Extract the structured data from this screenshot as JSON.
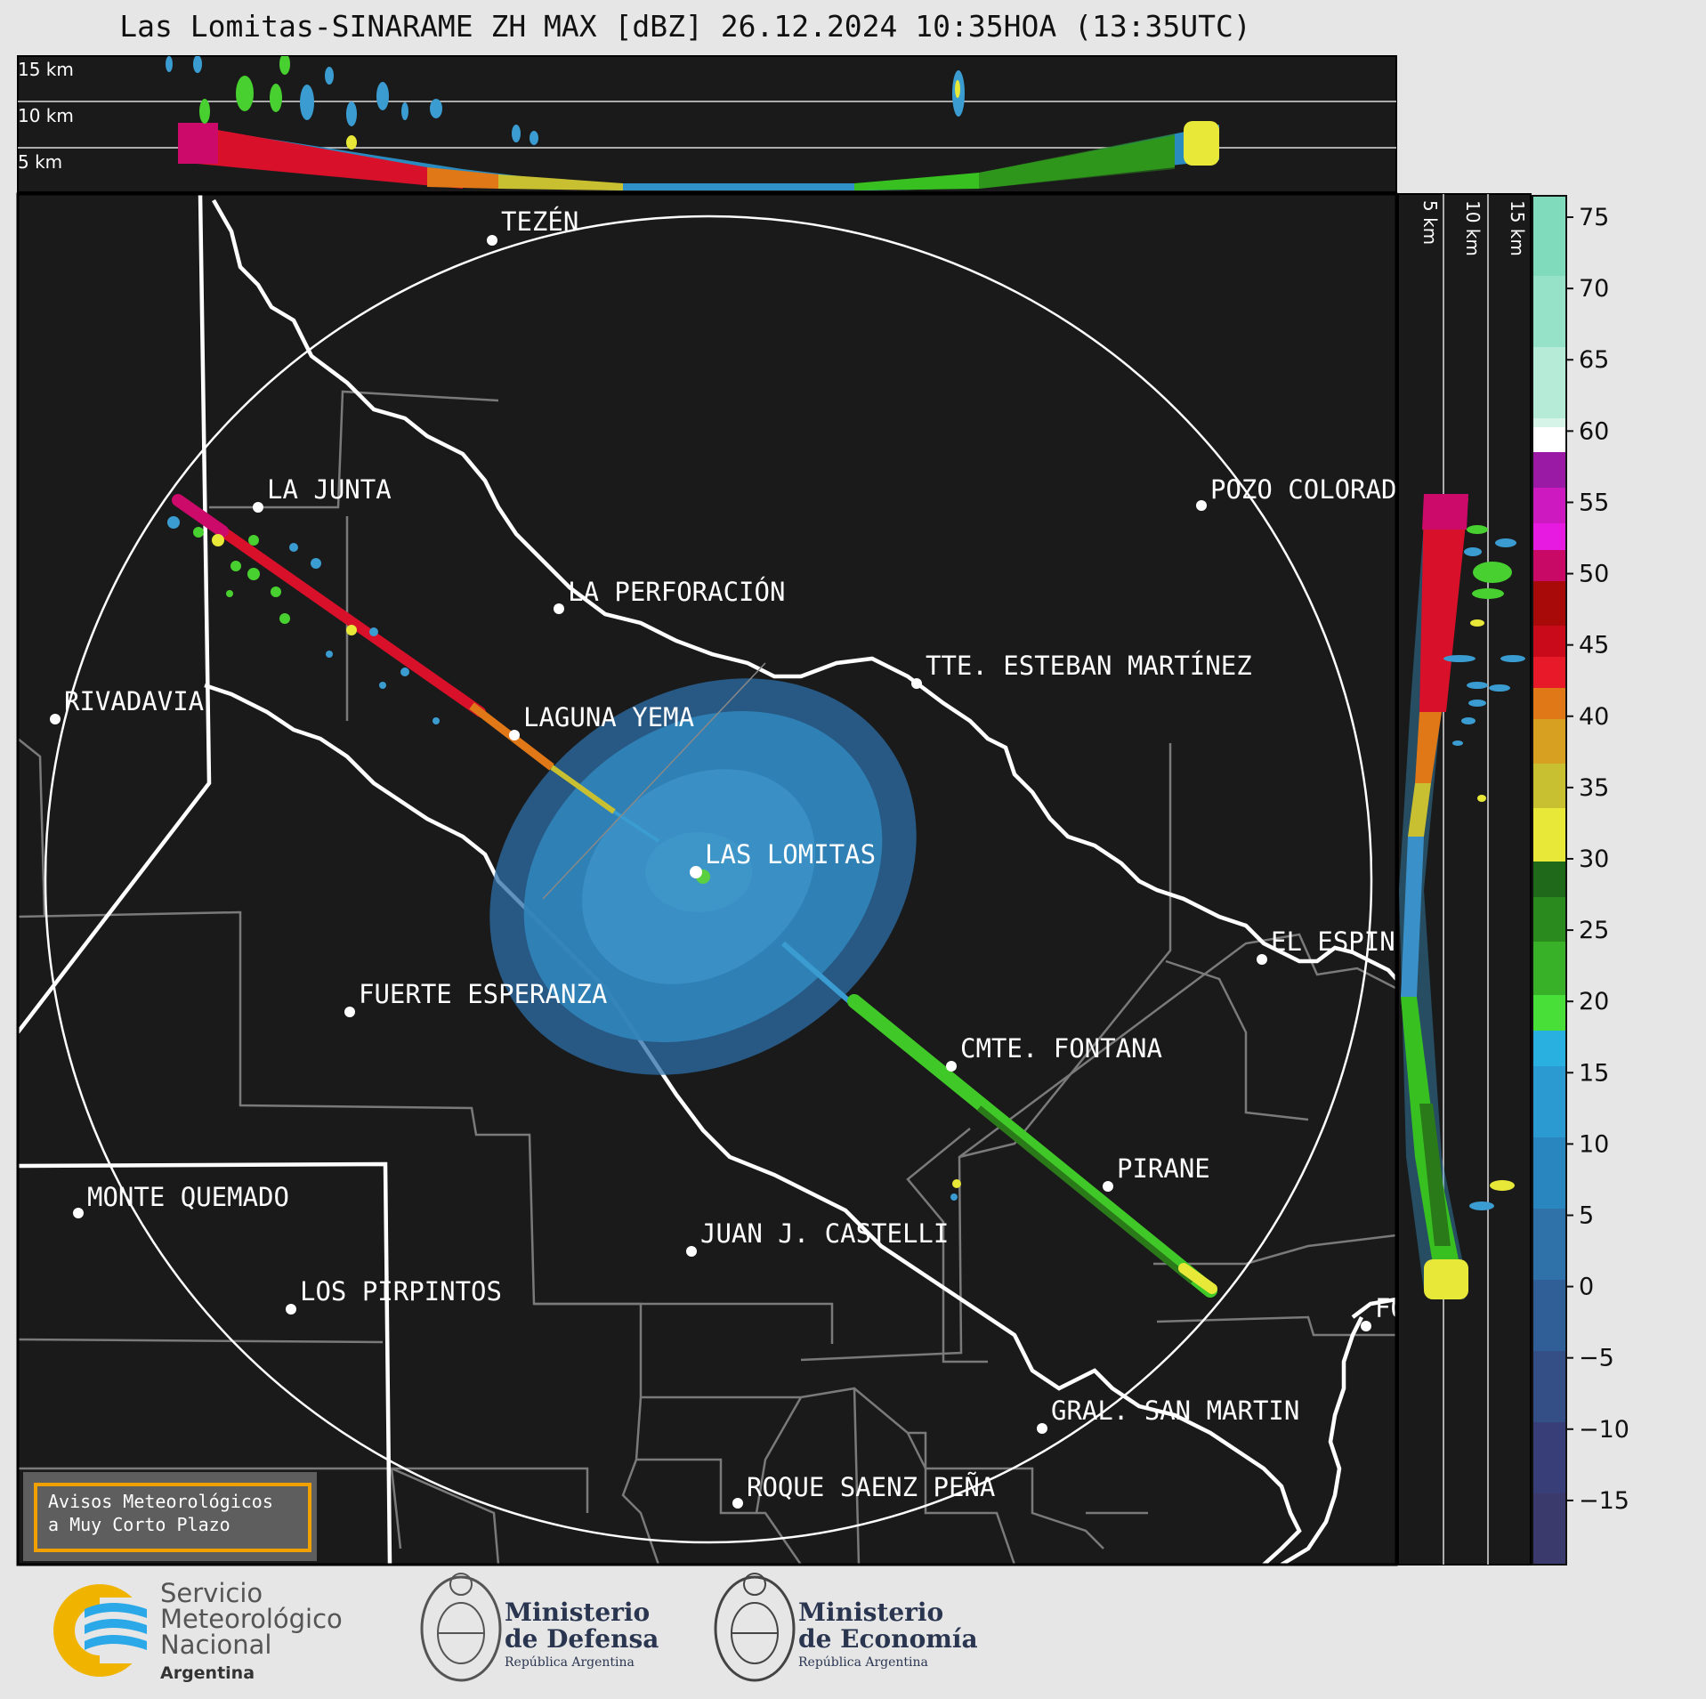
{
  "title": "Las Lomitas-SINARAME ZH MAX [dBZ] 26.12.2024 10:35HOA (13:35UTC)",
  "top_profile": {
    "height_labels": [
      "15 km",
      "10 km",
      "5 km"
    ]
  },
  "side_profile": {
    "height_labels": [
      "5 km",
      "10 km",
      "15 km"
    ]
  },
  "map": {
    "places": [
      {
        "name": "TEZÉN"
      },
      {
        "name": "LA JUNTA"
      },
      {
        "name": "POZO COLORADO"
      },
      {
        "name": "LA PERFORACIÓN"
      },
      {
        "name": "TTE. ESTEBAN MARTÍNEZ"
      },
      {
        "name": "RIVADAVIA"
      },
      {
        "name": "LAGUNA YEMA"
      },
      {
        "name": "LAS LOMITAS"
      },
      {
        "name": "EL ESPINILLO"
      },
      {
        "name": "FUERTE ESPERANZA"
      },
      {
        "name": "CMTE. FONTANA"
      },
      {
        "name": "PIRANE"
      },
      {
        "name": "MONTE QUEMADO"
      },
      {
        "name": "JUAN J. CASTELLI"
      },
      {
        "name": "LOS PIRPINTOS"
      },
      {
        "name": "GRAL. SAN MARTIN"
      },
      {
        "name": "ROQUE SAENZ PEÑA"
      },
      {
        "name": "FORMOSA"
      }
    ]
  },
  "colorbar": {
    "unit": "dBZ",
    "ticks": [
      "75",
      "70",
      "65",
      "60",
      "55",
      "50",
      "45",
      "40",
      "35",
      "30",
      "25",
      "20",
      "15",
      "10",
      "5",
      "0",
      "−5",
      "−10",
      "−15"
    ],
    "range": [
      -19.5,
      76.5
    ]
  },
  "warning_box": {
    "line1": "Avisos Meteorológicos",
    "line2": "a Muy Corto Plazo"
  },
  "logos": {
    "smn": {
      "line1": "Servicio",
      "line2": "Meteorológico",
      "line3": "Nacional",
      "line4": "Argentina"
    },
    "defensa": {
      "line1": "Ministerio",
      "line2": "de Defensa",
      "line3": "República Argentina"
    },
    "economia": {
      "line1": "Ministerio",
      "line2": "de Economía",
      "line3": "República Argentina"
    }
  },
  "colors": {
    "background": "#1a1a1a",
    "page": "#e6e6e6",
    "accent": "#f0a000"
  }
}
